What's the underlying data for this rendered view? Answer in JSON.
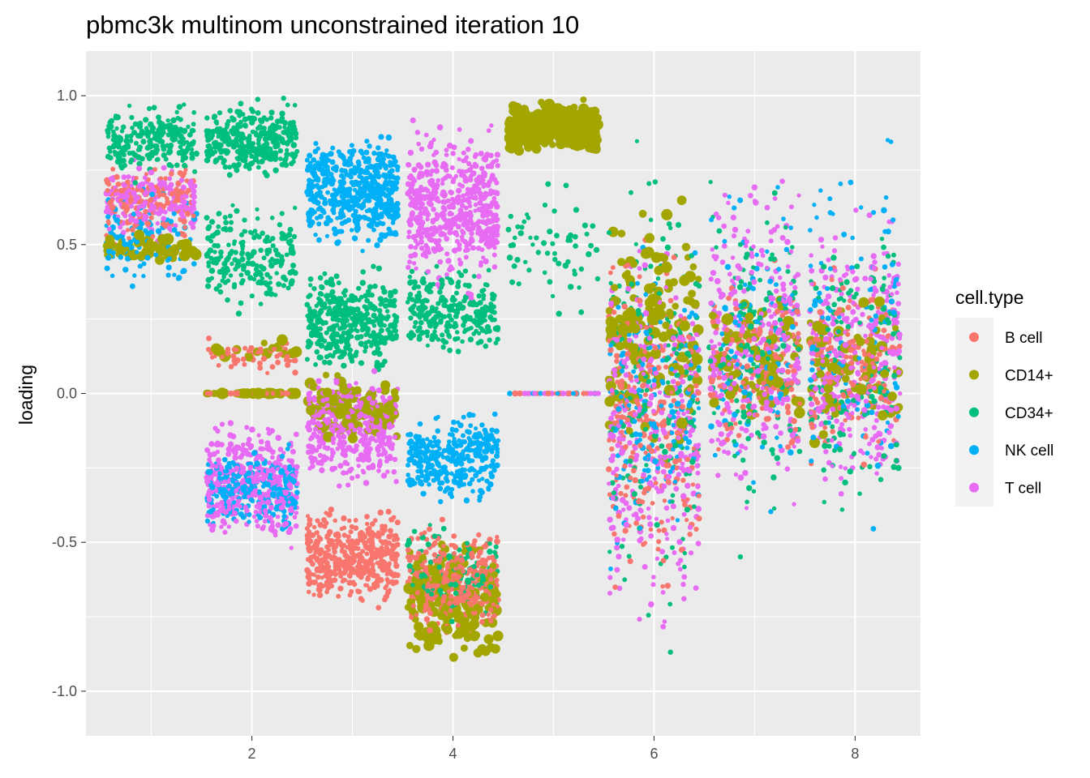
{
  "chart_data": {
    "type": "scatter",
    "title": "pbmc3k multinom unconstrained iteration 10",
    "xlabel": "",
    "ylabel": "loading",
    "xlim": [
      0.35,
      8.65
    ],
    "ylim": [
      -1.15,
      1.15
    ],
    "x_ticks": [
      2,
      4,
      6,
      8
    ],
    "x_tick_labels": [
      "2",
      "4",
      "6",
      "8"
    ],
    "y_ticks": [
      1.0,
      0.5,
      0.0,
      -0.5,
      -1.0
    ],
    "y_tick_labels": [
      "1.0",
      "0.5",
      "0.0",
      "-0.5",
      "-1.0"
    ],
    "grid": true,
    "jitter_width": 0.45,
    "legend": {
      "title": "cell.type",
      "position": "right",
      "entries": [
        "B cell",
        "CD14+",
        "CD34+",
        "NK cell",
        "T cell"
      ]
    },
    "colors": {
      "B cell": "#F8766D",
      "CD14+": "#A3A500",
      "CD34+": "#00BF7D",
      "NK cell": "#00B0F6",
      "T cell": "#E76BF3",
      "panel_background": "#EBEBEB",
      "grid": "#FFFFFF"
    },
    "series_note_points_are_jittered_per_factor": true,
    "series": [
      {
        "name": "B cell",
        "clusters": [
          {
            "k": 1,
            "y": [
              0.45,
              0.82
            ],
            "n": 160
          },
          {
            "k": 2,
            "y": [
              0.0,
              0.0
            ],
            "n": 40
          },
          {
            "k": 2,
            "y": [
              0.05,
              0.2
            ],
            "n": 50
          },
          {
            "k": 3,
            "y": [
              -0.75,
              -0.35
            ],
            "n": 450
          },
          {
            "k": 4,
            "y": [
              -0.85,
              -0.4
            ],
            "n": 330
          },
          {
            "k": 5,
            "y": [
              0.0,
              0.0
            ],
            "n": 20
          },
          {
            "k": 6,
            "y": [
              -0.8,
              0.6
            ],
            "n": 260
          },
          {
            "k": 7,
            "y": [
              -0.3,
              0.5
            ],
            "n": 160
          },
          {
            "k": 8,
            "y": [
              -0.3,
              0.5
            ],
            "n": 160
          }
        ]
      },
      {
        "name": "CD14+",
        "clusters": [
          {
            "k": 1,
            "y": [
              0.43,
              0.55
            ],
            "n": 60
          },
          {
            "k": 2,
            "y": [
              0.0,
              0.0
            ],
            "n": 45
          },
          {
            "k": 2,
            "y": [
              0.1,
              0.2
            ],
            "n": 15
          },
          {
            "k": 3,
            "y": [
              -0.2,
              0.1
            ],
            "n": 110
          },
          {
            "k": 4,
            "y": [
              -0.95,
              -0.45
            ],
            "n": 170
          },
          {
            "k": 5,
            "y": [
              0.78,
              1.0
            ],
            "n": 300
          },
          {
            "k": 6,
            "y": [
              -0.3,
              0.72
            ],
            "n": 150
          },
          {
            "k": 7,
            "y": [
              -0.2,
              0.45
            ],
            "n": 70
          },
          {
            "k": 8,
            "y": [
              -0.25,
              0.45
            ],
            "n": 70
          }
        ]
      },
      {
        "name": "CD34+",
        "clusters": [
          {
            "k": 1,
            "y": [
              0.7,
              1.0
            ],
            "n": 230
          },
          {
            "k": 2,
            "y": [
              0.7,
              1.0
            ],
            "n": 330
          },
          {
            "k": 2,
            "y": [
              0.25,
              0.7
            ],
            "n": 200
          },
          {
            "k": 3,
            "y": [
              0.05,
              0.45
            ],
            "n": 380
          },
          {
            "k": 4,
            "y": [
              0.1,
              0.45
            ],
            "n": 250
          },
          {
            "k": 4,
            "y": [
              -0.8,
              -0.4
            ],
            "n": 120
          },
          {
            "k": 5,
            "y": [
              0.2,
              0.78
            ],
            "n": 60
          },
          {
            "k": 6,
            "y": [
              -0.95,
              0.95
            ],
            "n": 180
          },
          {
            "k": 7,
            "y": [
              -0.6,
              0.9
            ],
            "n": 150
          },
          {
            "k": 8,
            "y": [
              -0.5,
              0.7
            ],
            "n": 150
          }
        ]
      },
      {
        "name": "NK cell",
        "clusters": [
          {
            "k": 1,
            "y": [
              0.3,
              0.75
            ],
            "n": 100
          },
          {
            "k": 2,
            "y": [
              -0.5,
              -0.15
            ],
            "n": 260
          },
          {
            "k": 3,
            "y": [
              0.45,
              0.9
            ],
            "n": 520
          },
          {
            "k": 4,
            "y": [
              -0.4,
              -0.03
            ],
            "n": 330
          },
          {
            "k": 5,
            "y": [
              0.0,
              0.0
            ],
            "n": 10
          },
          {
            "k": 6,
            "y": [
              -0.65,
              0.6
            ],
            "n": 160
          },
          {
            "k": 7,
            "y": [
              -0.5,
              0.9
            ],
            "n": 100
          },
          {
            "k": 8,
            "y": [
              -0.5,
              1.0
            ],
            "n": 100
          }
        ]
      },
      {
        "name": "T cell",
        "clusters": [
          {
            "k": 1,
            "y": [
              0.5,
              0.8
            ],
            "n": 200
          },
          {
            "k": 2,
            "y": [
              -0.55,
              -0.05
            ],
            "n": 380
          },
          {
            "k": 3,
            "y": [
              -0.35,
              0.1
            ],
            "n": 360
          },
          {
            "k": 4,
            "y": [
              0.3,
              0.95
            ],
            "n": 520
          },
          {
            "k": 5,
            "y": [
              0.0,
              0.0
            ],
            "n": 20
          },
          {
            "k": 6,
            "y": [
              -0.9,
              0.65
            ],
            "n": 320
          },
          {
            "k": 7,
            "y": [
              -0.45,
              0.8
            ],
            "n": 320
          },
          {
            "k": 8,
            "y": [
              -0.5,
              0.75
            ],
            "n": 320
          }
        ]
      }
    ]
  }
}
